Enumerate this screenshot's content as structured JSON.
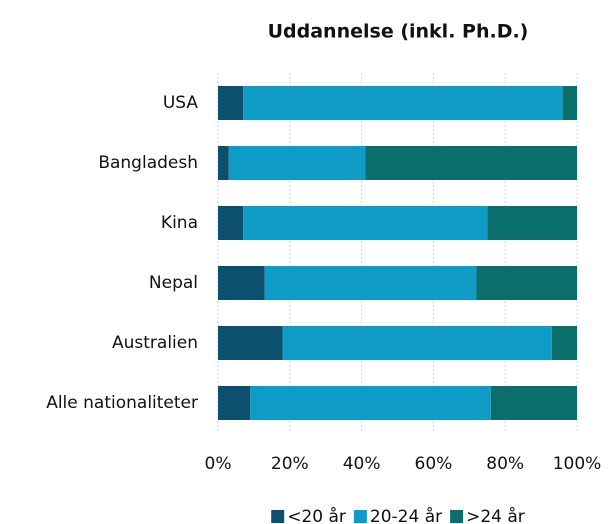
{
  "chart_data": {
    "type": "stacked_barh",
    "title": "Uddannelse (inkl. Ph.D.)",
    "categories": [
      "USA",
      "Bangladesh",
      "Kina",
      "Nepal",
      "Australien",
      "Alle nationaliteter"
    ],
    "series": [
      {
        "name": "<20 år",
        "color": "#0d4f6e",
        "values": [
          7,
          3,
          7,
          13,
          18,
          9
        ]
      },
      {
        "name": "20-24 år",
        "color": "#0e9cc6",
        "values": [
          89,
          38,
          68,
          59,
          75,
          67
        ]
      },
      {
        "name": ">24 år",
        "color": "#0a6e6a",
        "values": [
          4,
          59,
          25,
          28,
          7,
          24
        ]
      }
    ],
    "xlim": [
      0,
      100
    ],
    "xticks": [
      {
        "value": 0,
        "label": "0%"
      },
      {
        "value": 20,
        "label": "20%"
      },
      {
        "value": 40,
        "label": "40%"
      },
      {
        "value": 60,
        "label": "60%"
      },
      {
        "value": 80,
        "label": "80%"
      },
      {
        "value": 100,
        "label": "100%"
      }
    ],
    "grid": true,
    "legend": "bottom"
  }
}
